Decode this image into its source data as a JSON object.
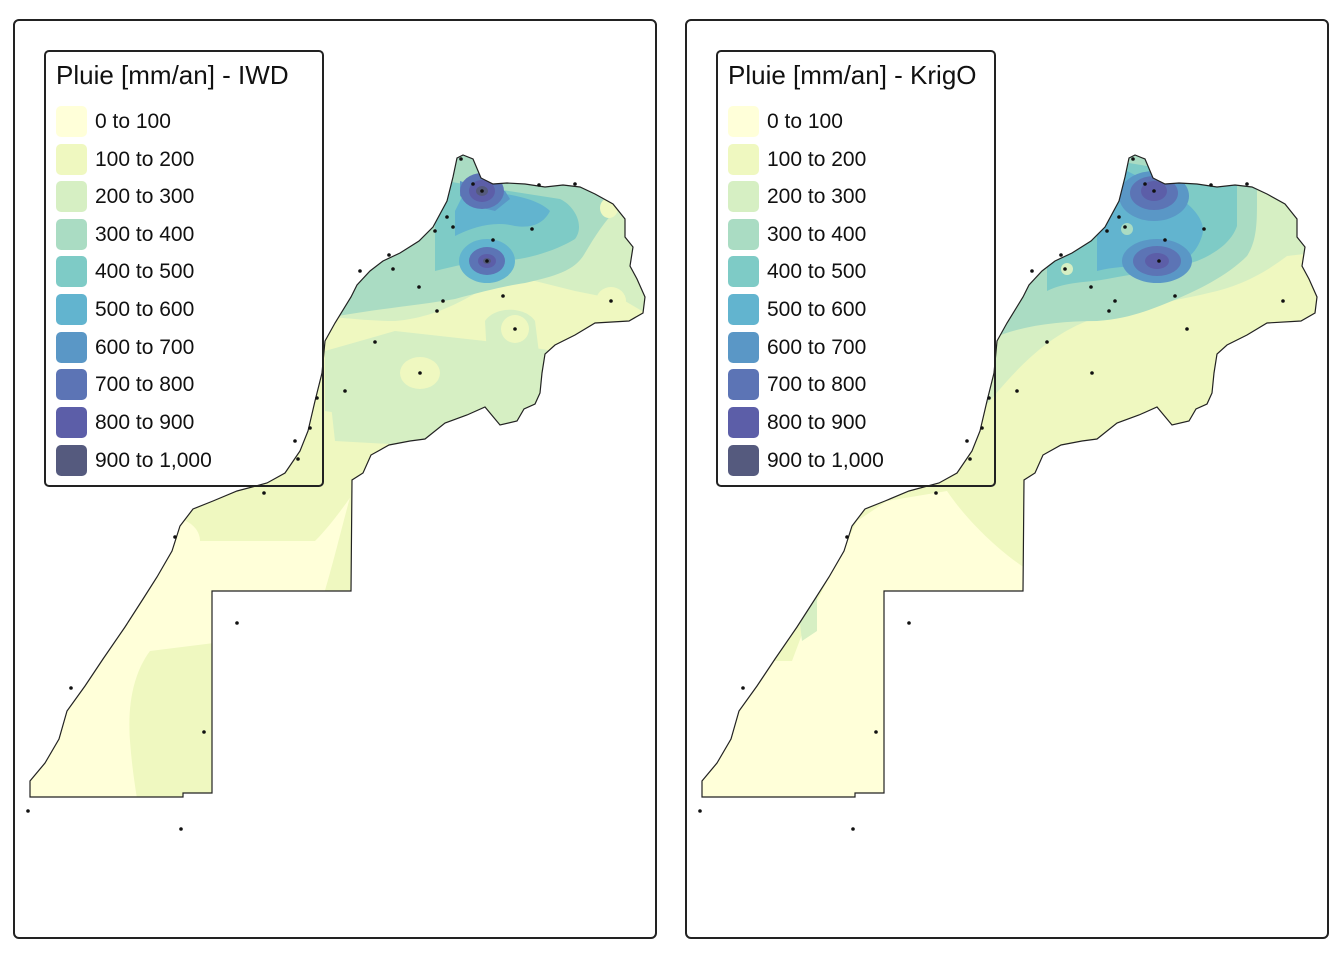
{
  "legend_classes": [
    {
      "label": "0 to 100",
      "color": "#ffffd9"
    },
    {
      "label": "100 to 200",
      "color": "#eff8c0"
    },
    {
      "label": "200 to 300",
      "color": "#d6efc3"
    },
    {
      "label": "300 to 400",
      "color": "#aadcc3"
    },
    {
      "label": "400 to 500",
      "color": "#7ecbc6"
    },
    {
      "label": "500 to 600",
      "color": "#62b4cf"
    },
    {
      "label": "600 to 700",
      "color": "#5a97c6"
    },
    {
      "label": "700 to 800",
      "color": "#5c74b5"
    },
    {
      "label": "800 to 900",
      "color": "#5c5ea8"
    },
    {
      "label": "900 to 1,000",
      "color": "#555a7e"
    }
  ],
  "maps": [
    {
      "legend_title": "Pluie [mm/an] - IWD"
    },
    {
      "legend_title": "Pluie [mm/an] - KrigO"
    }
  ]
}
